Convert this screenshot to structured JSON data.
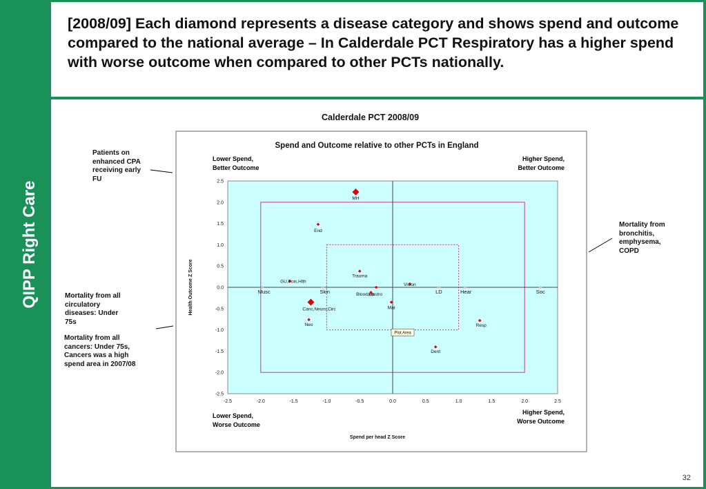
{
  "slide": {
    "sidebar_label": "QIPP Right Care",
    "title": "[2008/09] Each diamond represents a disease category and shows spend and outcome compared to the national average – In Calderdale PCT Respiratory has a higher spend with worse outcome when compared to other PCTs nationally.",
    "chart_heading": "Calderdale PCT     2008/09",
    "page_number": "32",
    "annotations": {
      "cpa": "Patients on enhanced CPA receiving early FU",
      "copd": "Mortality from bronchitis, emphysema, COPD",
      "circulatory": "Mortality from all circulatory diseases: Under 75s",
      "cancers": "Mortality from all cancers: Under 75s, Cancers was a high spend area in 2007/08"
    }
  },
  "chart_data": {
    "type": "scatter",
    "title": "Spend and Outcome relative to other PCTs in England",
    "xlabel": "Spend per head Z Score",
    "ylabel": "Health Outcome Z Score",
    "xlim": [
      -2.5,
      2.5
    ],
    "ylim": [
      -2.5,
      2.5
    ],
    "xticks": [
      "-2.5",
      "-2.0",
      "-1.5",
      "-1.0",
      "-0.5",
      "0.0",
      "0.5",
      "1.0",
      "1.5",
      "2.0",
      "2.5"
    ],
    "yticks": [
      "2.5",
      "2.0",
      "1.5",
      "1.0",
      "0.5",
      "0.0",
      "-0.5",
      "-1.0",
      "-1.5",
      "-2.0",
      "-2.5"
    ],
    "quadrant_labels": {
      "top_left": [
        "Lower Spend,",
        "Better Outcome"
      ],
      "top_right": [
        "Higher Spend,",
        "Better Outcome"
      ],
      "bottom_left": [
        "Lower Spend,",
        "Worse Outcome"
      ],
      "bottom_right": [
        "Higher Spend,",
        "Worse Outcome"
      ]
    },
    "outer_box": {
      "x": [
        -2.0,
        2.0
      ],
      "y": [
        -2.0,
        2.0
      ]
    },
    "inner_box": {
      "x": [
        -1.0,
        1.0
      ],
      "y": [
        -1.0,
        1.0
      ]
    },
    "tooltip": "Plot Area",
    "colors": {
      "point": "#e00000",
      "faint_point": "#f0b0b0",
      "plot_bg": "#ccffff",
      "box": "#cc3399",
      "quadrant_text": "#0000cc"
    },
    "points": [
      {
        "label": "MH",
        "x": -0.56,
        "y": 2.24,
        "large": true
      },
      {
        "label": "End",
        "x": -1.13,
        "y": 1.48
      },
      {
        "label": "Trauma",
        "x": -0.5,
        "y": 0.38
      },
      {
        "label": "GU,Pois,Hlth",
        "x": -1.56,
        "y": 0.14
      },
      {
        "label": "Vision",
        "x": 0.26,
        "y": 0.08
      },
      {
        "label": "Blood,Gastro",
        "x": -0.25,
        "y": 0.0
      },
      {
        "label": "Infl",
        "x": -0.33,
        "y": -0.12
      },
      {
        "label": "Mat",
        "x": -0.02,
        "y": -0.35
      },
      {
        "label": "Canc,Neuro,Circ",
        "x": -1.24,
        "y": -0.35,
        "large": true
      },
      {
        "label": "Neo",
        "x": -1.27,
        "y": -0.76
      },
      {
        "label": "Resp",
        "x": 1.32,
        "y": -0.78
      },
      {
        "label": "Dent",
        "x": 0.65,
        "y": -1.4
      },
      {
        "label": "Musc",
        "x": -1.98,
        "y": 0.0,
        "faint": true
      },
      {
        "label": "Skin",
        "x": -1.06,
        "y": 0.0,
        "faint": true
      },
      {
        "label": "LD",
        "x": 0.7,
        "y": 0.0,
        "faint": true
      },
      {
        "label": "Hear",
        "x": 1.1,
        "y": 0.0,
        "faint": true
      },
      {
        "label": "Soc",
        "x": 2.24,
        "y": 0.0,
        "faint": true
      }
    ]
  }
}
